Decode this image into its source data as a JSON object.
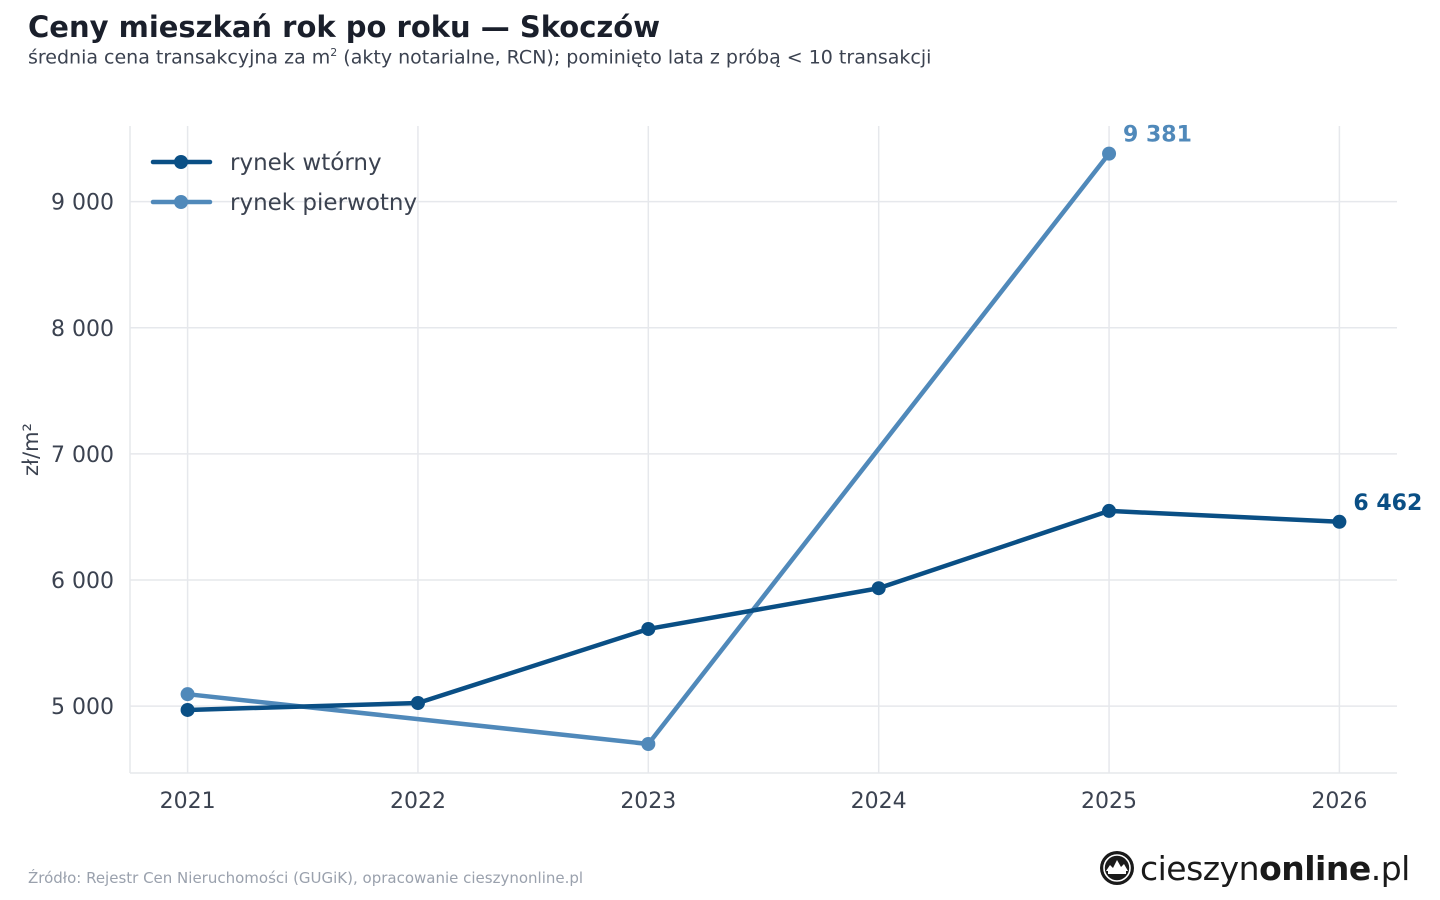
{
  "header": {
    "title": "Ceny mieszkań rok po roku — Skoczów",
    "subtitle_before": "średnia cena transakcyjna za m",
    "subtitle_sup": "2",
    "subtitle_after": " (akty notarialne, RCN); pominięto lata z próbą < 10 transakcji"
  },
  "footer": {
    "source": "Źródło: Rejestr Cen Nieruchomości (GUGiK), opracowanie cieszynonline.pl",
    "logo_part1": "cieszyn",
    "logo_part2": "online",
    "logo_part3": ".pl"
  },
  "colors": {
    "secondary_market": "#0a4f85",
    "primary_market": "#5089ba",
    "grid": "#e6e8ec",
    "axis_text": "#3b4250"
  },
  "chart_data": {
    "type": "line",
    "ylabel": "zł/m²",
    "x": [
      2021,
      2022,
      2023,
      2024,
      2025,
      2026
    ],
    "x_tick_labels": [
      "2021",
      "2022",
      "2023",
      "2024",
      "2025",
      "2026"
    ],
    "y_ticks": [
      5000,
      6000,
      7000,
      8000,
      9000
    ],
    "y_tick_labels": [
      "5 000",
      "6 000",
      "7 000",
      "8 000",
      "9 000"
    ],
    "xlim": [
      2020.75,
      2026.25
    ],
    "ylim": [
      4470,
      9600
    ],
    "grid": true,
    "legend_position": "top-left",
    "series": [
      {
        "name": "rynek wtórny",
        "color": "#0a4f85",
        "values": [
          4970,
          5025,
          5612,
          5935,
          6548,
          6462
        ],
        "end_label": "6 462",
        "end_label_index": 5
      },
      {
        "name": "rynek pierwotny",
        "color": "#5089ba",
        "values": [
          5095,
          null,
          4700,
          null,
          9381,
          null
        ],
        "end_label": "9 381",
        "end_label_index": 4
      }
    ]
  }
}
